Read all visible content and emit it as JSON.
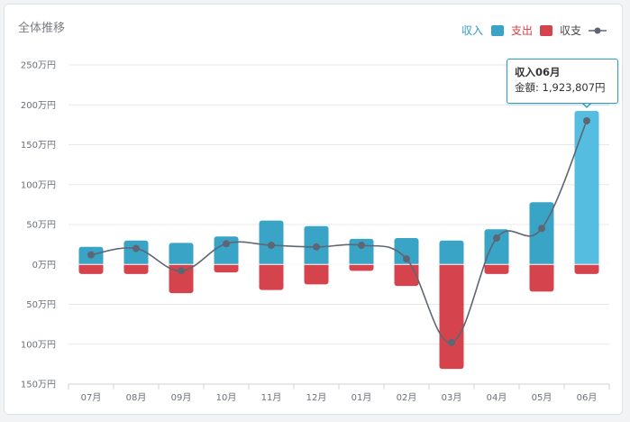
{
  "panel": {
    "title": "全体推移"
  },
  "tooltip": {
    "title": "収入06月",
    "amount_label": "金額",
    "amount_value": "1,923,807円"
  },
  "colors": {
    "income": "#3aa4c6",
    "income_highlight": "#54bde0",
    "expense": "#d5444d",
    "balance": "#5f6673",
    "income_legend_text": "#2f9bc2",
    "expense_legend_text": "#d23f46",
    "balance_legend_text": "#444444"
  },
  "chart_data": {
    "type": "bar",
    "categories": [
      "07月",
      "08月",
      "09月",
      "10月",
      "11月",
      "12月",
      "01月",
      "02月",
      "03月",
      "04月",
      "05月",
      "06月"
    ],
    "series": [
      {
        "name": "収入",
        "type": "bar",
        "values": [
          22,
          30,
          27,
          35,
          55,
          48,
          32,
          33,
          30,
          44,
          78,
          192.4
        ]
      },
      {
        "name": "支出",
        "type": "bar",
        "values": [
          -12,
          -12,
          -36,
          -10,
          -32,
          -25,
          -8,
          -27,
          -131,
          -12,
          -34,
          -12
        ]
      },
      {
        "name": "収支",
        "type": "line",
        "values": [
          12,
          20,
          -8,
          26,
          24,
          22,
          24,
          7,
          -98,
          33,
          45,
          180
        ]
      }
    ],
    "y_ticks": [
      "250万円",
      "200万円",
      "150万円",
      "100万円",
      "50万円",
      "0万円",
      "50万円",
      "100万円",
      "150万円"
    ],
    "ylim": [
      -150,
      250
    ],
    "highlighted_category": "06月",
    "legend_placement": "top-right",
    "grid": true
  }
}
